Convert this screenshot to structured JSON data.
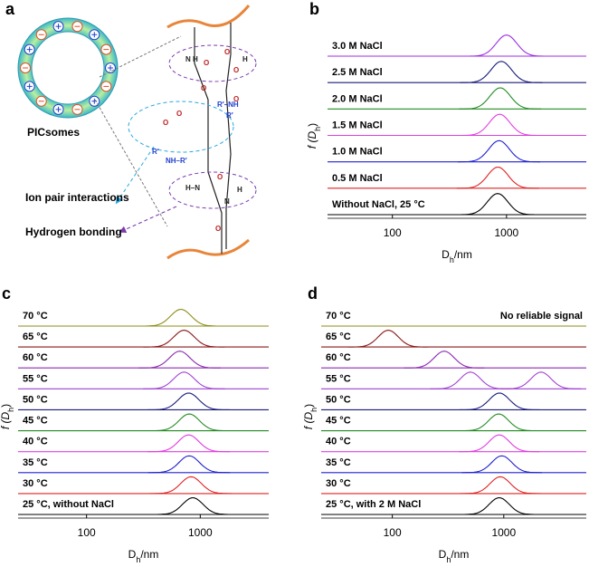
{
  "diagram": {
    "panel": "a",
    "title": "PICsomes",
    "ion_pair": "Ion pair interactions",
    "hydrogen": "Hydrogen bonding",
    "atoms": [
      "N",
      "H",
      "O",
      "O",
      "H",
      "O",
      "O",
      "R′–NH",
      "R′",
      "O",
      "O",
      "R′",
      "NH–R′",
      "O",
      "H–N",
      "O",
      "H",
      "N",
      "O"
    ]
  },
  "chart_data": [
    {
      "type": "ridgeline",
      "panel": "b",
      "xlabel": [
        "D",
        "h",
        "/nm"
      ],
      "ylabel": [
        "f (D",
        "h",
        ")"
      ],
      "log_x": true,
      "xlim": [
        27,
        5000
      ],
      "xticks": [
        100,
        1000
      ],
      "series": [
        {
          "name": "3.0 M NaCl",
          "color": "#9b30e0",
          "peaks": [
            1000
          ]
        },
        {
          "name": "2.5 M NaCl",
          "color": "#1a1a7a",
          "peaks": [
            900
          ]
        },
        {
          "name": "2.0 M NaCl",
          "color": "#228b22",
          "peaks": [
            880
          ]
        },
        {
          "name": "1.5 M NaCl",
          "color": "#e040e0",
          "peaks": [
            870
          ]
        },
        {
          "name": "1.0 M NaCl",
          "color": "#2020d0",
          "peaks": [
            860
          ]
        },
        {
          "name": "0.5 M NaCl",
          "color": "#e02020",
          "peaks": [
            840
          ]
        },
        {
          "name": "Without NaCl, 25 °C",
          "color": "#000000",
          "peaks": [
            836
          ]
        }
      ]
    },
    {
      "type": "ridgeline",
      "panel": "c",
      "xlabel": [
        "D",
        "h",
        "/nm"
      ],
      "ylabel": [
        "f (D",
        "h",
        ")"
      ],
      "log_x": true,
      "xlim": [
        25,
        4000
      ],
      "xticks": [
        100,
        1000
      ],
      "series": [
        {
          "name": "70 °C",
          "color": "#8c8c1a",
          "peaks": [
            676
          ]
        },
        {
          "name": "65 °C",
          "color": "#8b1a1a",
          "peaks": [
            720
          ]
        },
        {
          "name": "60 °C",
          "color": "#8b2bb0",
          "peaks": [
            660
          ]
        },
        {
          "name": "55 °C",
          "color": "#a040d0",
          "peaks": [
            720
          ]
        },
        {
          "name": "50 °C",
          "color": "#1a1a7a",
          "peaks": [
            790
          ]
        },
        {
          "name": "45 °C",
          "color": "#228b22",
          "peaks": [
            800
          ]
        },
        {
          "name": "40 °C",
          "color": "#e040e0",
          "peaks": [
            790
          ]
        },
        {
          "name": "35 °C",
          "color": "#2020d0",
          "peaks": [
            800
          ]
        },
        {
          "name": "30 °C",
          "color": "#e02020",
          "peaks": [
            830
          ]
        },
        {
          "name": "25 °C, without NaCl",
          "color": "#000000",
          "peaks": [
            860
          ]
        }
      ]
    },
    {
      "type": "ridgeline",
      "panel": "d",
      "xlabel": [
        "D",
        "h",
        "/nm"
      ],
      "ylabel": [
        "f (D",
        "h",
        ")"
      ],
      "log_x": true,
      "xlim": [
        23,
        5500
      ],
      "xticks": [
        100,
        1000
      ],
      "annotation": "No reliable signal",
      "series": [
        {
          "name": "70 °C",
          "color": "#8c8c1a",
          "peaks": []
        },
        {
          "name": "65 °C",
          "color": "#8b1a1a",
          "peaks": [
            92
          ]
        },
        {
          "name": "60 °C",
          "color": "#8b2bb0",
          "peaks": [
            292
          ]
        },
        {
          "name": "55 °C",
          "color": "#a040d0",
          "peaks": [
            502,
            2160
          ]
        },
        {
          "name": "50 °C",
          "color": "#1a1a7a",
          "peaks": [
            914
          ]
        },
        {
          "name": "45 °C",
          "color": "#228b22",
          "peaks": [
            900
          ]
        },
        {
          "name": "40 °C",
          "color": "#e040e0",
          "peaks": [
            910
          ]
        },
        {
          "name": "35 °C",
          "color": "#2020d0",
          "peaks": [
            960
          ]
        },
        {
          "name": "30 °C",
          "color": "#e02020",
          "peaks": [
            930
          ]
        },
        {
          "name": "25 °C, with 2 M NaCl",
          "color": "#000000",
          "peaks": [
            910
          ]
        }
      ]
    }
  ]
}
